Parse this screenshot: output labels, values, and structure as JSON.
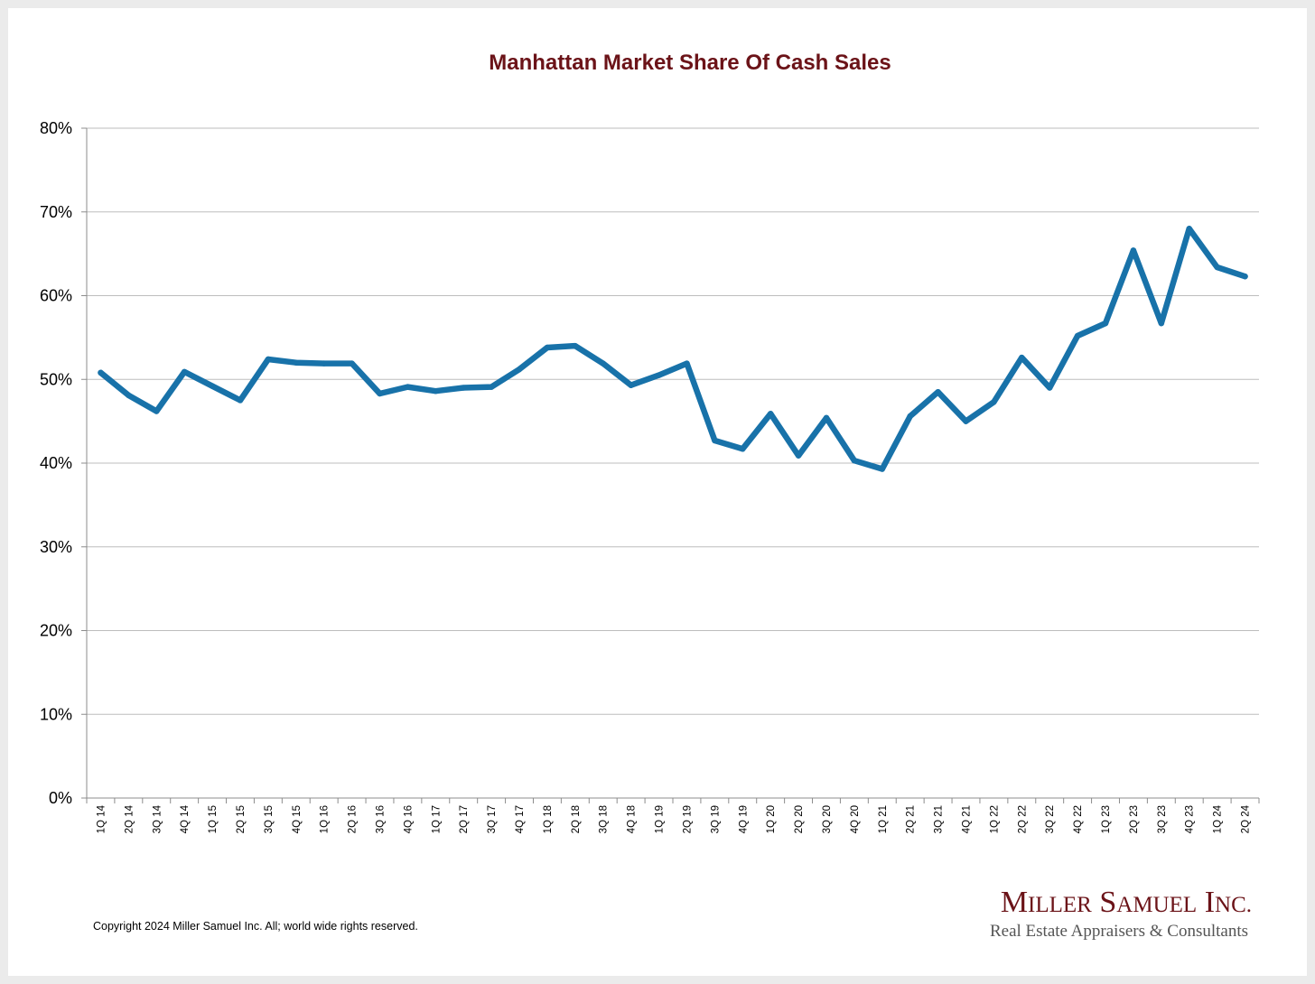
{
  "chart_data": {
    "type": "line",
    "title": "Manhattan Market Share Of Cash Sales",
    "xlabel": "",
    "ylabel": "",
    "ylim": [
      0,
      80
    ],
    "yticks": [
      "0%",
      "10%",
      "20%",
      "30%",
      "40%",
      "50%",
      "60%",
      "70%",
      "80%"
    ],
    "grid": true,
    "legend": "none",
    "line_color": "#1872a9",
    "categories": [
      "1Q 14",
      "2Q 14",
      "3Q 14",
      "4Q 14",
      "1Q 15",
      "2Q 15",
      "3Q 15",
      "4Q 15",
      "1Q 16",
      "2Q 16",
      "3Q 16",
      "4Q 16",
      "1Q 17",
      "2Q 17",
      "3Q 17",
      "4Q 17",
      "1Q 18",
      "2Q 18",
      "3Q 18",
      "4Q 18",
      "1Q 19",
      "2Q 19",
      "3Q 19",
      "4Q 19",
      "1Q 20",
      "2Q 20",
      "3Q 20",
      "4Q 20",
      "1Q 21",
      "2Q 21",
      "3Q 21",
      "4Q 21",
      "1Q 22",
      "2Q 22",
      "3Q 22",
      "4Q 22",
      "1Q 23",
      "2Q 23",
      "3Q 23",
      "4Q 23",
      "1Q 24",
      "2Q 24"
    ],
    "series": [
      {
        "values": [
          50.8,
          48.1,
          46.2,
          50.9,
          49.2,
          47.5,
          52.4,
          52.0,
          51.9,
          51.9,
          48.3,
          49.1,
          48.6,
          49.0,
          49.1,
          51.2,
          53.8,
          54.0,
          51.9,
          49.3,
          50.5,
          51.9,
          42.7,
          41.7,
          45.9,
          40.9,
          45.4,
          40.3,
          39.3,
          45.6,
          48.5,
          45.0,
          47.3,
          52.6,
          49.0,
          55.2,
          56.7,
          65.4,
          56.7,
          68.0,
          63.4,
          62.3
        ]
      }
    ]
  },
  "footer": {
    "copyright": "Copyright 2024 Miller Samuel Inc.  All; world wide rights reserved.",
    "logo_line1": "Miller Samuel Inc.",
    "logo_line2": "Real Estate Appraisers & Consultants"
  }
}
